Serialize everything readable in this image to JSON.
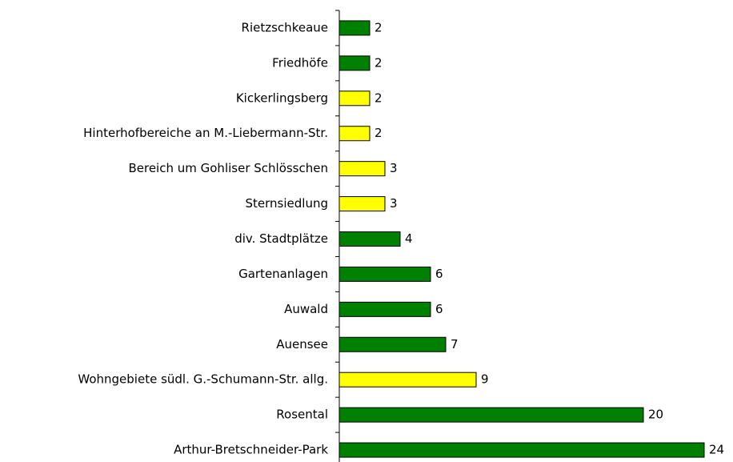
{
  "chart_data": {
    "type": "barh",
    "categories": [
      "Rietzschkeaue",
      "Friedhöfe",
      "Kickerlingsberg",
      "Hinterhofbereiche an M.-Liebermann-Str.",
      "Bereich um Gohliser Schlösschen",
      "Sternsiedlung",
      "div. Stadtplätze",
      "Gartenanlagen",
      "Auwald",
      "Auensee",
      "Wohngebiete südl. G.-Schumann-Str. allg.",
      "Rosental",
      "Arthur-Bretschneider-Park"
    ],
    "values": [
      2,
      2,
      2,
      2,
      3,
      3,
      4,
      6,
      6,
      7,
      9,
      20,
      24
    ],
    "colors": [
      "#008000",
      "#008000",
      "#ffff00",
      "#ffff00",
      "#ffff00",
      "#ffff00",
      "#008000",
      "#008000",
      "#008000",
      "#008000",
      "#ffff00",
      "#008000",
      "#008000"
    ],
    "xlim": [
      0,
      24
    ]
  }
}
